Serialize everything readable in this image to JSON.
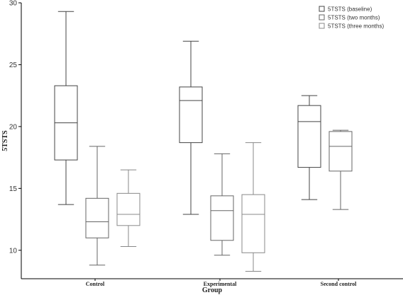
{
  "chart_data": {
    "type": "box",
    "xlabel": "Group",
    "ylabel": "5TSTS",
    "ylim": [
      7.7,
      30
    ],
    "yticks": [
      10,
      15,
      20,
      25,
      30
    ],
    "categories": [
      "Control",
      "Experimental",
      "Second control"
    ],
    "legend_position": "top-right",
    "series": [
      {
        "name": "5TSTS (baseline)",
        "color": "#444444",
        "boxes": [
          {
            "category": "Control",
            "min": 13.7,
            "q1": 17.3,
            "median": 20.3,
            "q3": 23.3,
            "max": 29.3
          },
          {
            "category": "Experimental",
            "min": 12.9,
            "q1": 18.7,
            "median": 22.1,
            "q3": 23.2,
            "max": 26.9
          },
          {
            "category": "Second control",
            "min": 14.1,
            "q1": 16.7,
            "median": 20.4,
            "q3": 21.7,
            "max": 22.5
          }
        ]
      },
      {
        "name": "5TSTS (two months)",
        "color": "#666666",
        "boxes": [
          {
            "category": "Control",
            "min": 8.8,
            "q1": 11.0,
            "median": 12.3,
            "q3": 14.2,
            "max": 18.4
          },
          {
            "category": "Experimental",
            "min": 9.6,
            "q1": 10.8,
            "median": 13.2,
            "q3": 14.4,
            "max": 17.8
          },
          {
            "category": "Second control",
            "min": 13.3,
            "q1": 16.4,
            "median": 18.4,
            "q3": 19.6,
            "max": 19.7
          }
        ]
      },
      {
        "name": "5TSTS (three months)",
        "color": "#888888",
        "boxes": [
          {
            "category": "Control",
            "min": 10.3,
            "q1": 12.0,
            "median": 12.9,
            "q3": 14.6,
            "max": 16.5
          },
          {
            "category": "Experimental",
            "min": 8.3,
            "q1": 9.8,
            "median": 12.9,
            "q3": 14.5,
            "max": 18.7
          }
        ]
      }
    ]
  }
}
